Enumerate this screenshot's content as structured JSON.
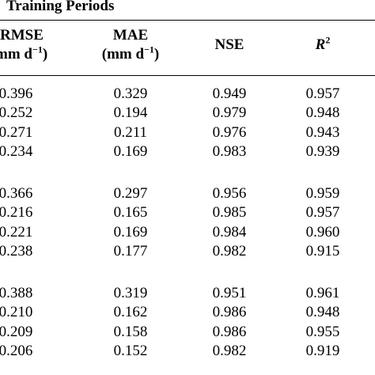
{
  "section_title": "Training Periods",
  "headers": {
    "rmse": {
      "name": "RMSE",
      "unit_pre": "mm d",
      "unit_exp": "−1",
      "unit_post": ")"
    },
    "mae": {
      "name": "MAE",
      "unit_pre": "(mm d",
      "unit_exp": "−1",
      "unit_post": ")"
    },
    "nse": {
      "name": "NSE"
    },
    "r2": {
      "name": "R",
      "exp": "2"
    }
  },
  "groups": [
    {
      "rows": [
        [
          "0.396",
          "0.329",
          "0.949",
          "0.957"
        ],
        [
          "0.252",
          "0.194",
          "0.979",
          "0.948"
        ],
        [
          "0.271",
          "0.211",
          "0.976",
          "0.943"
        ],
        [
          "0.234",
          "0.169",
          "0.983",
          "0.939"
        ]
      ]
    },
    {
      "rows": [
        [
          "0.366",
          "0.297",
          "0.956",
          "0.959"
        ],
        [
          "0.216",
          "0.165",
          "0.985",
          "0.957"
        ],
        [
          "0.221",
          "0.169",
          "0.984",
          "0.960"
        ],
        [
          "0.238",
          "0.177",
          "0.982",
          "0.915"
        ]
      ]
    },
    {
      "rows": [
        [
          "0.388",
          "0.319",
          "0.951",
          "0.961"
        ],
        [
          "0.210",
          "0.162",
          "0.986",
          "0.948"
        ],
        [
          "0.209",
          "0.158",
          "0.986",
          "0.955"
        ],
        [
          "0.206",
          "0.152",
          "0.982",
          "0.919"
        ]
      ]
    }
  ]
}
